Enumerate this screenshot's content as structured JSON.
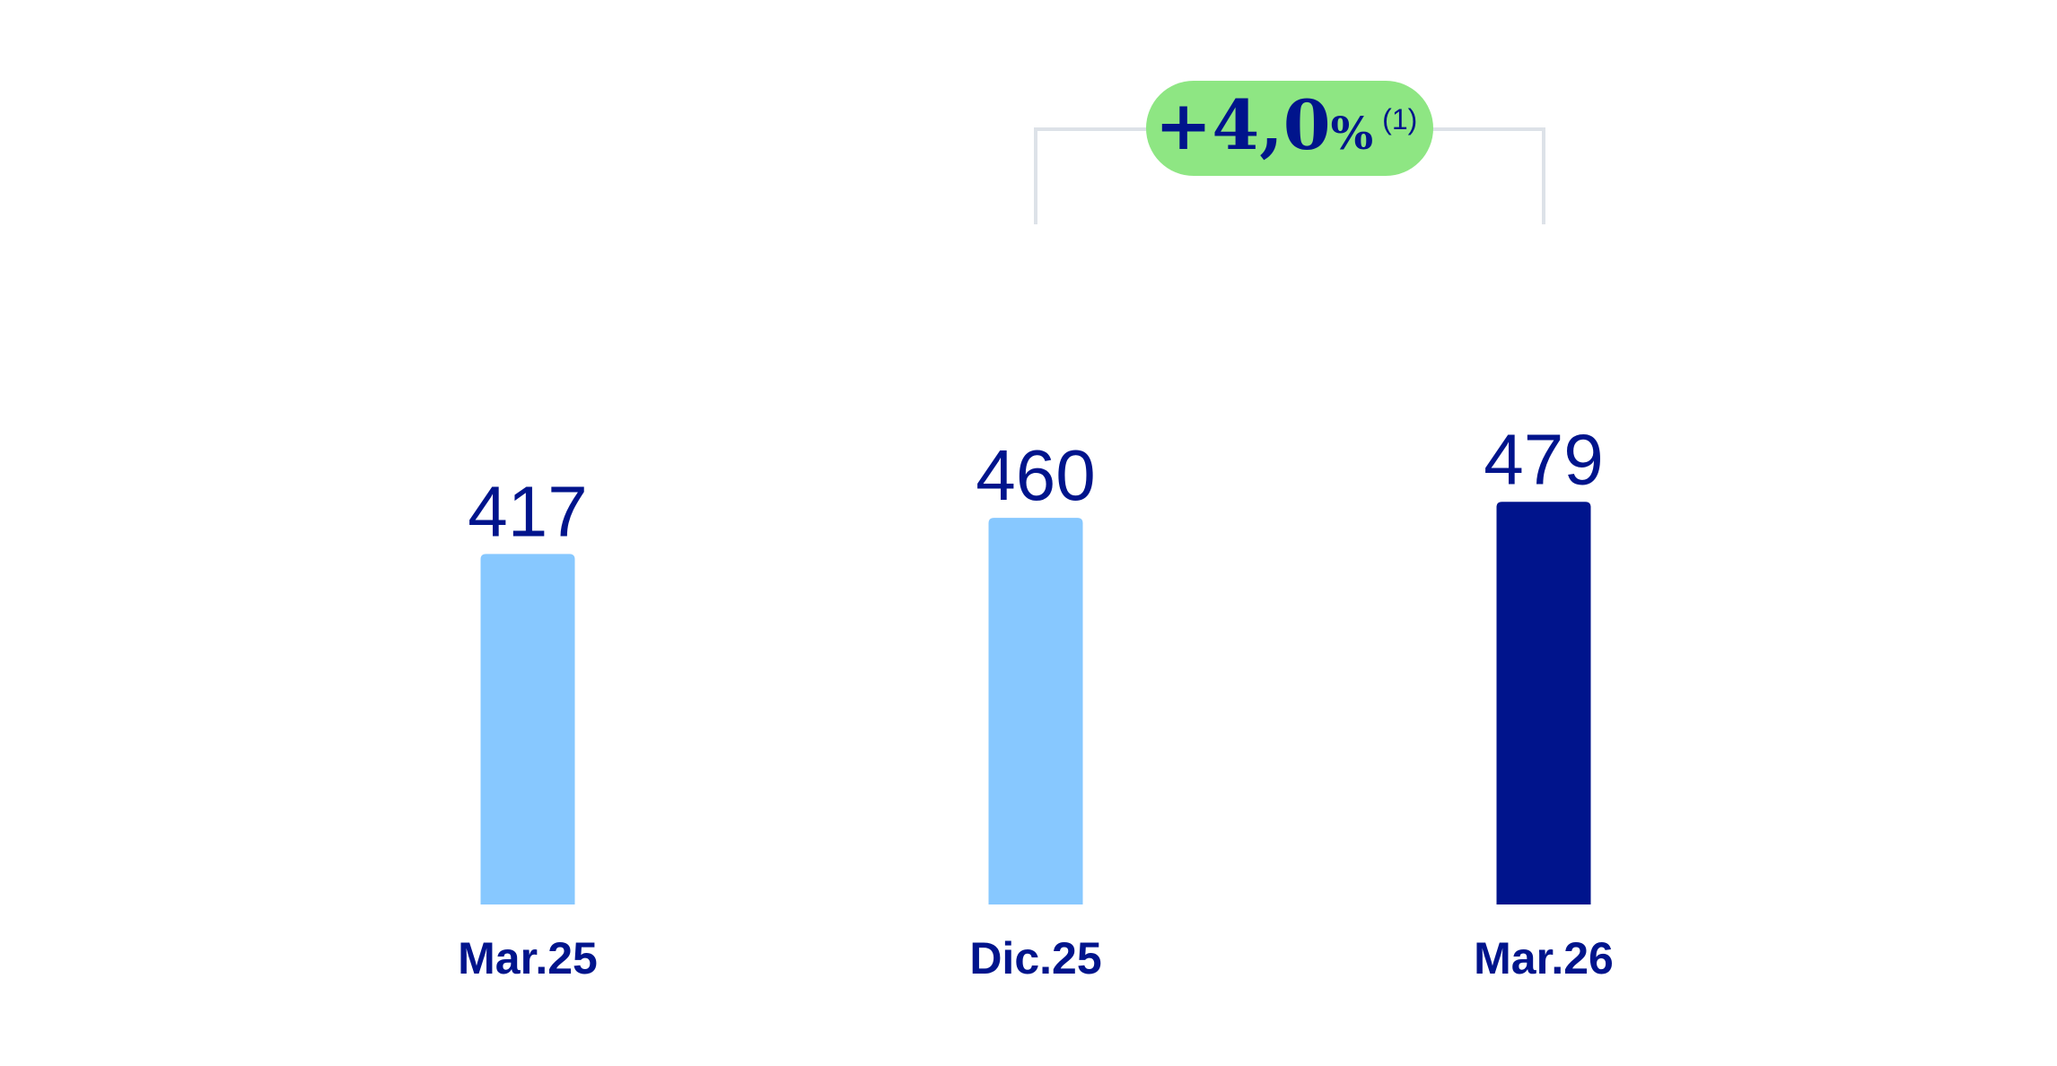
{
  "chart_data": {
    "type": "bar",
    "categories": [
      "Mar.25",
      "Dic.25",
      "Mar.26"
    ],
    "values": [
      417,
      460,
      479
    ],
    "value_labels": [
      "417",
      "460",
      "479"
    ],
    "title": "",
    "xlabel": "",
    "ylabel": "",
    "colors": [
      "#87c8ff",
      "#87c8ff",
      "#00148c"
    ],
    "badge": {
      "main": "+4,0",
      "unit": "%",
      "note": "(1)",
      "fill": "#8ee683",
      "from_category": "Dic.25",
      "to_category": "Mar.26"
    }
  }
}
